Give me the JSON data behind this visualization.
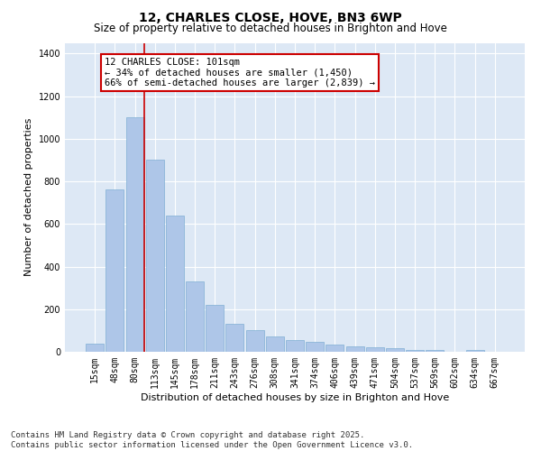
{
  "title": "12, CHARLES CLOSE, HOVE, BN3 6WP",
  "subtitle": "Size of property relative to detached houses in Brighton and Hove",
  "xlabel": "Distribution of detached houses by size in Brighton and Hove",
  "ylabel": "Number of detached properties",
  "categories": [
    "15sqm",
    "48sqm",
    "80sqm",
    "113sqm",
    "145sqm",
    "178sqm",
    "211sqm",
    "243sqm",
    "276sqm",
    "308sqm",
    "341sqm",
    "374sqm",
    "406sqm",
    "439sqm",
    "471sqm",
    "504sqm",
    "537sqm",
    "569sqm",
    "602sqm",
    "634sqm",
    "667sqm"
  ],
  "values": [
    40,
    760,
    1100,
    900,
    640,
    330,
    220,
    130,
    100,
    70,
    55,
    45,
    35,
    25,
    20,
    15,
    10,
    10,
    2,
    10,
    2
  ],
  "bar_color": "#aec6e8",
  "bar_edgecolor": "#7fafd4",
  "vline_color": "#cc0000",
  "annotation_text": "12 CHARLES CLOSE: 101sqm\n← 34% of detached houses are smaller (1,450)\n66% of semi-detached houses are larger (2,839) →",
  "annotation_box_edgecolor": "#cc0000",
  "ylim": [
    0,
    1450
  ],
  "yticks": [
    0,
    200,
    400,
    600,
    800,
    1000,
    1200,
    1400
  ],
  "background_color": "#dde8f5",
  "footer_text": "Contains HM Land Registry data © Crown copyright and database right 2025.\nContains public sector information licensed under the Open Government Licence v3.0.",
  "title_fontsize": 10,
  "subtitle_fontsize": 8.5,
  "xlabel_fontsize": 8,
  "ylabel_fontsize": 8,
  "tick_fontsize": 7,
  "annotation_fontsize": 7.5,
  "footer_fontsize": 6.5
}
